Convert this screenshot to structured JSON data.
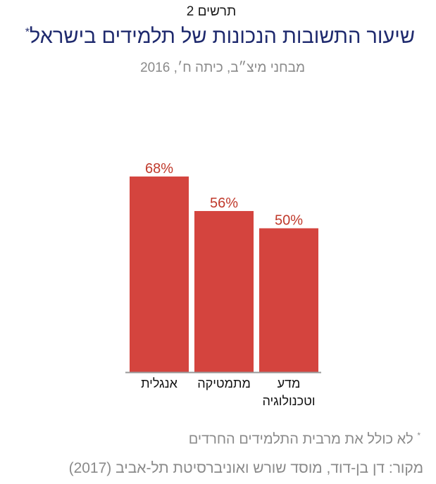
{
  "header": {
    "figure_label": "תרשים 2",
    "title": "שיעור התשובות הנכונות של תלמידים בישראל",
    "title_marker": "*",
    "subtitle": "מבחני מיצ״ב, כיתה ח׳, 2016"
  },
  "chart_data": {
    "type": "bar",
    "categories": [
      [
        "אנגלית"
      ],
      [
        "מתמטיקה"
      ],
      [
        "מדע",
        "וטכנולוגיה"
      ]
    ],
    "values": [
      68,
      56,
      50
    ],
    "value_labels": [
      "68%",
      "56%",
      "50%"
    ],
    "ylim": [
      0,
      100
    ],
    "grid": false,
    "legend": "none",
    "bar_color": "#d4443e",
    "value_label_color": "#c0392b",
    "axis_color": "#999999"
  },
  "footer": {
    "footnote_marker": "*",
    "footnote": "לא כולל את מרבית התלמידים החרדים",
    "source": "מקור:  דן בן-דוד, מוסד שורש ואוניברסיטת תל-אביב (2017)"
  }
}
